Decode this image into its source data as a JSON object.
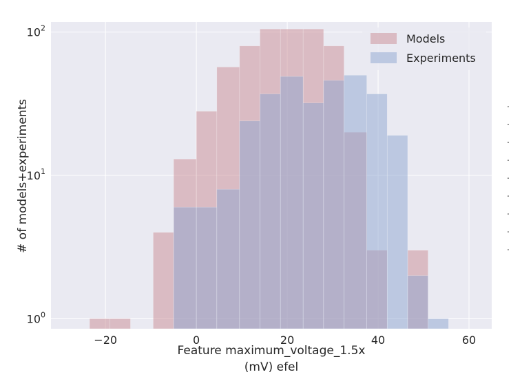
{
  "chart_data": {
    "type": "bar",
    "scale_y": "log",
    "xlim": [
      -32,
      65
    ],
    "ylim_exp": [
      -0.07,
      2.07
    ],
    "x_ticks": [
      {
        "value": -20,
        "label": "−20"
      },
      {
        "value": 0,
        "label": "0"
      },
      {
        "value": 20,
        "label": "20"
      },
      {
        "value": 40,
        "label": "40"
      },
      {
        "value": 60,
        "label": "60"
      }
    ],
    "y_ticks": [
      {
        "exp": 0,
        "base": "10",
        "sup": "0"
      },
      {
        "exp": 1,
        "base": "10",
        "sup": "1"
      },
      {
        "exp": 2,
        "base": "10",
        "sup": "2"
      }
    ],
    "xlabel_line1": "Feature maximum_voltage_1.5x",
    "xlabel_line2": "(mV) efel",
    "ylabel": "# of models+experiments",
    "grid": true,
    "legend_position": "top-right",
    "series": [
      {
        "name": "Models",
        "color": "#c98c94",
        "alpha": 0.5,
        "bins": [
          {
            "x0": -23.5,
            "x1": -19,
            "value": 1
          },
          {
            "x0": -19,
            "x1": -14.5,
            "value": 1
          },
          {
            "x0": -9.5,
            "x1": -5,
            "value": 4
          },
          {
            "x0": -5,
            "x1": 0,
            "value": 13
          },
          {
            "x0": 0,
            "x1": 4.5,
            "value": 28
          },
          {
            "x0": 4.5,
            "x1": 9.5,
            "value": 57
          },
          {
            "x0": 9.5,
            "x1": 14,
            "value": 80
          },
          {
            "x0": 14,
            "x1": 18.5,
            "value": 105
          },
          {
            "x0": 18.5,
            "x1": 23.5,
            "value": 105
          },
          {
            "x0": 23.5,
            "x1": 28,
            "value": 105
          },
          {
            "x0": 28,
            "x1": 32.5,
            "value": 80
          },
          {
            "x0": 32.5,
            "x1": 37.5,
            "value": 20
          },
          {
            "x0": 37.5,
            "x1": 42,
            "value": 3
          },
          {
            "x0": 46.5,
            "x1": 51,
            "value": 3
          }
        ]
      },
      {
        "name": "Experiments",
        "color": "#8da5cf",
        "alpha": 0.5,
        "bins": [
          {
            "x0": -5,
            "x1": 0,
            "value": 6
          },
          {
            "x0": 0,
            "x1": 4.5,
            "value": 6
          },
          {
            "x0": 4.5,
            "x1": 9.5,
            "value": 8
          },
          {
            "x0": 9.5,
            "x1": 14,
            "value": 24
          },
          {
            "x0": 14,
            "x1": 18.5,
            "value": 37
          },
          {
            "x0": 18.5,
            "x1": 23.5,
            "value": 49
          },
          {
            "x0": 23.5,
            "x1": 28,
            "value": 32
          },
          {
            "x0": 28,
            "x1": 32.5,
            "value": 46
          },
          {
            "x0": 32.5,
            "x1": 37.5,
            "value": 50
          },
          {
            "x0": 37.5,
            "x1": 42,
            "value": 37
          },
          {
            "x0": 42,
            "x1": 46.5,
            "value": 19
          },
          {
            "x0": 46.5,
            "x1": 51,
            "value": 2
          },
          {
            "x0": 51,
            "x1": 55.5,
            "value": 1
          }
        ]
      }
    ]
  },
  "side_marks": [
    "·",
    "·",
    "·",
    "·",
    "·",
    "·",
    "·",
    "·",
    "·"
  ],
  "colors": {
    "plot_background": "#eaeaf2",
    "grid": "#ffffff",
    "text": "#262626"
  }
}
